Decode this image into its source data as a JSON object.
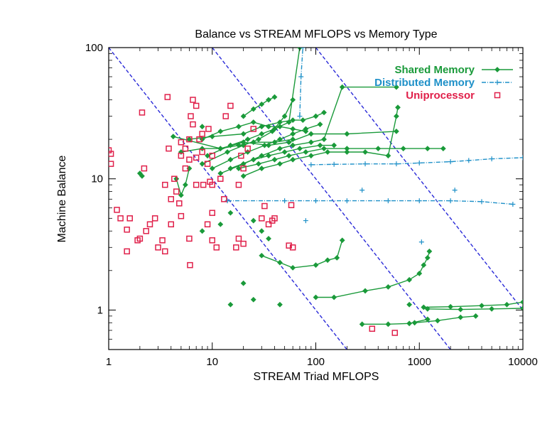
{
  "chart_data": {
    "type": "scatter",
    "title": "Balance vs STREAM MFLOPS vs Memory Type",
    "xlabel": "STREAM Triad MFLOPS",
    "ylabel": "Machine Balance",
    "xscale": "log",
    "yscale": "log",
    "xlim": [
      1,
      10000
    ],
    "ylim": [
      0.5,
      100
    ],
    "x_ticks": [
      1,
      10,
      100,
      1000,
      10000
    ],
    "x_tick_labels": [
      "1",
      "10",
      "100",
      "1000",
      "10000"
    ],
    "y_ticks": [
      1,
      10,
      100
    ],
    "y_tick_labels": [
      "1",
      "10",
      "100"
    ],
    "legend_position": "top-right",
    "grid": false,
    "series": [
      {
        "name": "Shared Memory",
        "color": "#1a9a3a",
        "style": "line-diamond",
        "lines": [
          [
            [
              4.2,
              21
            ],
            [
              12,
              17
            ],
            [
              20,
              19
            ],
            [
              35,
              18
            ],
            [
              55,
              19
            ],
            [
              90,
              22
            ],
            [
              200,
              22
            ],
            [
              600,
              23
            ]
          ],
          [
            [
              6,
              20
            ],
            [
              10,
              21
            ],
            [
              20,
              22
            ],
            [
              30,
              25
            ],
            [
              45,
              27
            ],
            [
              60,
              28
            ],
            [
              75,
              28
            ],
            [
              100,
              30
            ],
            [
              120,
              32
            ]
          ],
          [
            [
              9,
              15
            ],
            [
              15,
              18
            ],
            [
              22,
              20
            ],
            [
              30,
              22
            ],
            [
              40,
              24
            ],
            [
              55,
              27
            ],
            [
              70,
              100
            ]
          ],
          [
            [
              8,
              13
            ],
            [
              14,
              16
            ],
            [
              20,
              18
            ],
            [
              28,
              20
            ],
            [
              38,
              23
            ],
            [
              50,
              30
            ],
            [
              60,
              40
            ]
          ],
          [
            [
              10,
              12
            ],
            [
              15,
              14
            ],
            [
              22,
              16
            ],
            [
              32,
              18
            ],
            [
              45,
              20
            ],
            [
              60,
              22
            ],
            [
              80,
              24
            ],
            [
              110,
              26
            ]
          ],
          [
            [
              12,
              11
            ],
            [
              20,
              13
            ],
            [
              30,
              15
            ],
            [
              45,
              17
            ],
            [
              60,
              18
            ],
            [
              90,
              19
            ],
            [
              120,
              20
            ],
            [
              180,
              50
            ],
            [
              600,
              50
            ]
          ],
          [
            [
              15,
              12
            ],
            [
              25,
              14
            ],
            [
              35,
              15
            ],
            [
              50,
              16
            ],
            [
              70,
              17
            ],
            [
              110,
              18
            ],
            [
              150,
              18
            ]
          ],
          [
            [
              18,
              12
            ],
            [
              28,
              13
            ],
            [
              40,
              14
            ],
            [
              55,
              15
            ],
            [
              80,
              16
            ],
            [
              120,
              17
            ],
            [
              200,
              17
            ],
            [
              400,
              17
            ],
            [
              700,
              17
            ],
            [
              1200,
              17
            ],
            [
              1700,
              17
            ]
          ],
          [
            [
              20,
              10.5
            ],
            [
              30,
              12
            ],
            [
              45,
              13
            ],
            [
              60,
              14
            ],
            [
              90,
              15
            ],
            [
              130,
              16
            ],
            [
              200,
              16
            ],
            [
              300,
              16
            ],
            [
              500,
              15
            ],
            [
              600,
              30
            ],
            [
              620,
              35
            ]
          ],
          [
            [
              20,
              30
            ],
            [
              25,
              34
            ],
            [
              30,
              37
            ],
            [
              35,
              40
            ],
            [
              40,
              42
            ]
          ],
          [
            [
              8,
              20
            ],
            [
              12,
              23
            ],
            [
              18,
              25
            ],
            [
              25,
              27
            ],
            [
              35,
              25
            ],
            [
              45,
              25
            ],
            [
              60,
              24
            ],
            [
              80,
              23
            ]
          ],
          [
            [
              5,
              16
            ],
            [
              8,
              17
            ],
            [
              12,
              17
            ],
            [
              18,
              18
            ],
            [
              25,
              19
            ],
            [
              40,
              19
            ],
            [
              60,
              20
            ]
          ],
          [
            [
              4.5,
              10
            ],
            [
              5,
              7.5
            ],
            [
              5.5,
              9
            ],
            [
              6,
              12
            ]
          ],
          [
            [
              30,
              2.6
            ],
            [
              45,
              2.3
            ],
            [
              60,
              2.1
            ],
            [
              100,
              2.2
            ],
            [
              130,
              2.4
            ],
            [
              160,
              2.5
            ],
            [
              180,
              3.4
            ]
          ],
          [
            [
              100,
              1.25
            ],
            [
              150,
              1.25
            ],
            [
              300,
              1.4
            ],
            [
              500,
              1.5
            ],
            [
              800,
              1.7
            ],
            [
              1000,
              1.9
            ],
            [
              1100,
              2.2
            ],
            [
              1200,
              2.5
            ],
            [
              1250,
              2.8
            ]
          ],
          [
            [
              280,
              0.78
            ],
            [
              500,
              0.78
            ],
            [
              800,
              0.79
            ],
            [
              1200,
              0.85
            ]
          ],
          [
            [
              900,
              0.8
            ],
            [
              1500,
              0.83
            ],
            [
              2500,
              0.88
            ],
            [
              3500,
              0.9
            ]
          ],
          [
            [
              1100,
              1.05
            ],
            [
              2000,
              1.06
            ],
            [
              4000,
              1.08
            ],
            [
              7000,
              1.1
            ],
            [
              10000,
              1.15
            ]
          ],
          [
            [
              1200,
              1.02
            ],
            [
              2500,
              1.01
            ],
            [
              5000,
              1.02
            ],
            [
              10000,
              1.03
            ]
          ]
        ],
        "points": [
          [
            2,
            11
          ],
          [
            2.1,
            10.5
          ],
          [
            8,
            4
          ],
          [
            15,
            1.1
          ],
          [
            12,
            4.5
          ],
          [
            15,
            5.5
          ],
          [
            25,
            4.8
          ],
          [
            30,
            4
          ],
          [
            20,
            1.6
          ],
          [
            25,
            1.2
          ],
          [
            45,
            1.1
          ],
          [
            35,
            3.5
          ],
          [
            800,
            1.1
          ],
          [
            8,
            25
          ],
          [
            35,
            40
          ]
        ]
      },
      {
        "name": "Distributed Memory",
        "color": "#1e90c8",
        "style": "dashdot-plus",
        "lines": [
          [
            [
              14,
              6.8
            ],
            [
              50,
              6.8
            ],
            [
              100,
              6.8
            ],
            [
              200,
              6.8
            ],
            [
              500,
              6.8
            ],
            [
              1000,
              6.8
            ],
            [
              2000,
              6.8
            ],
            [
              4000,
              6.7
            ],
            [
              8000,
              6.4
            ]
          ],
          [
            [
              90,
              12.8
            ],
            [
              150,
              12.9
            ],
            [
              300,
              13
            ],
            [
              600,
              13
            ],
            [
              1000,
              13.2
            ],
            [
              2000,
              13.5
            ],
            [
              3000,
              13.8
            ],
            [
              5000,
              14.2
            ],
            [
              10000,
              14.5
            ]
          ],
          [
            [
              70,
              30
            ],
            [
              72,
              60
            ],
            [
              75,
              100
            ]
          ]
        ],
        "points": [
          [
            280,
            8.2
          ],
          [
            2200,
            8.2
          ],
          [
            80,
            4.8
          ],
          [
            1050,
            3.3
          ]
        ]
      },
      {
        "name": "Uniprocessor",
        "color": "#e0204a",
        "style": "open-square",
        "points": [
          [
            1,
            16.5
          ],
          [
            1.05,
            15.5
          ],
          [
            1.05,
            13
          ],
          [
            1.2,
            5.8
          ],
          [
            1.3,
            5
          ],
          [
            1.5,
            4.1
          ],
          [
            1.6,
            5
          ],
          [
            1.5,
            2.8
          ],
          [
            1.9,
            3.4
          ],
          [
            2.1,
            32
          ],
          [
            2.2,
            12
          ],
          [
            2,
            3.5
          ],
          [
            2.3,
            4
          ],
          [
            2.5,
            4.5
          ],
          [
            2.8,
            5
          ],
          [
            3,
            3
          ],
          [
            3.3,
            3.4
          ],
          [
            3.5,
            2.8
          ],
          [
            3.5,
            9
          ],
          [
            3.7,
            42
          ],
          [
            3.8,
            17
          ],
          [
            4,
            4.5
          ],
          [
            4,
            7
          ],
          [
            4.3,
            10
          ],
          [
            4.5,
            8
          ],
          [
            4.8,
            6.5
          ],
          [
            5,
            5.2
          ],
          [
            5,
            15
          ],
          [
            5,
            19
          ],
          [
            5.5,
            12
          ],
          [
            5.5,
            17
          ],
          [
            6,
            20
          ],
          [
            6,
            14
          ],
          [
            6,
            3.5
          ],
          [
            6.1,
            2.2
          ],
          [
            6.2,
            30
          ],
          [
            6.5,
            26
          ],
          [
            6.5,
            40
          ],
          [
            7,
            36
          ],
          [
            7,
            9
          ],
          [
            7,
            14.5
          ],
          [
            7.5,
            20
          ],
          [
            8,
            22
          ],
          [
            8,
            16
          ],
          [
            8.2,
            9
          ],
          [
            9,
            4.5
          ],
          [
            9,
            13
          ],
          [
            9.2,
            24
          ],
          [
            9.5,
            9.5
          ],
          [
            10,
            5.5
          ],
          [
            10,
            15
          ],
          [
            10,
            9
          ],
          [
            10,
            3.4
          ],
          [
            11,
            3
          ],
          [
            12,
            10
          ],
          [
            13,
            7
          ],
          [
            13.5,
            30
          ],
          [
            15,
            36
          ],
          [
            17,
            3
          ],
          [
            18,
            3.5
          ],
          [
            18,
            9
          ],
          [
            19,
            15
          ],
          [
            20,
            12
          ],
          [
            20,
            3.2
          ],
          [
            22,
            17
          ],
          [
            25,
            24
          ],
          [
            30,
            5
          ],
          [
            32,
            6.2
          ],
          [
            35,
            4.5
          ],
          [
            38,
            4.8
          ],
          [
            40,
            5
          ],
          [
            55,
            3.1
          ],
          [
            60,
            3
          ],
          [
            58,
            6.3
          ],
          [
            350,
            0.72
          ],
          [
            580,
            0.67
          ]
        ]
      }
    ],
    "reference_lines": {
      "style": "dashed",
      "color": "#2a2ad8",
      "lines": [
        [
          [
            1,
            100
          ],
          [
            200,
            0.5
          ]
        ],
        [
          [
            10,
            100
          ],
          [
            2000,
            0.5
          ]
        ],
        [
          [
            100,
            100
          ],
          [
            20000,
            0.5
          ]
        ]
      ]
    }
  }
}
